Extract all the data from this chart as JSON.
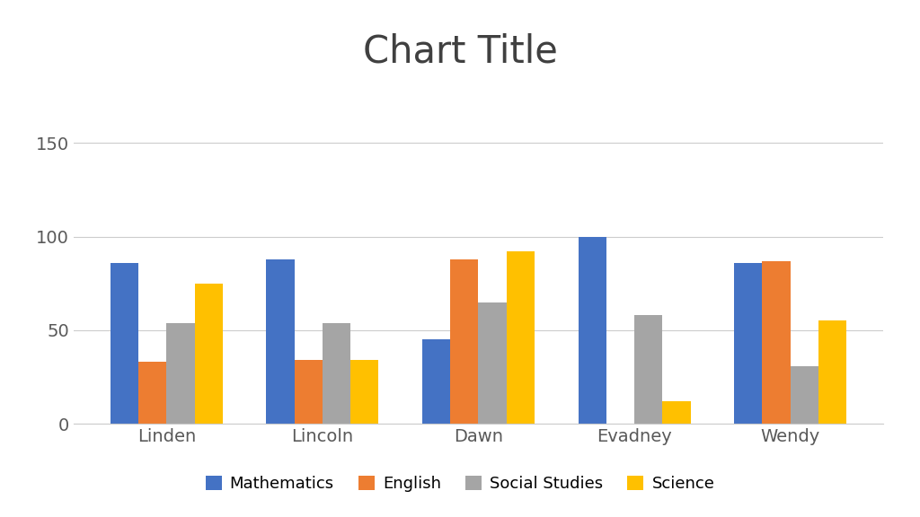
{
  "title": "Chart Title",
  "categories": [
    "Linden",
    "Lincoln",
    "Dawn",
    "Evadney",
    "Wendy"
  ],
  "series": {
    "Mathematics": [
      86,
      88,
      45,
      100,
      86
    ],
    "English": [
      33,
      34,
      88,
      0,
      87
    ],
    "Social Studies": [
      54,
      54,
      65,
      58,
      31
    ],
    "Science": [
      75,
      34,
      92,
      12,
      55
    ]
  },
  "colors": {
    "Mathematics": "#4472C4",
    "English": "#ED7D31",
    "Social Studies": "#A5A5A5",
    "Science": "#FFC000"
  },
  "ylim": [
    0,
    160
  ],
  "yticks": [
    0,
    50,
    100,
    150
  ],
  "title_fontsize": 30,
  "tick_fontsize": 14,
  "legend_fontsize": 13,
  "background_color": "#FFFFFF",
  "bar_width": 0.18,
  "grid_color": "#CCCCCC",
  "title_color": "#404040",
  "tick_color": "#595959"
}
